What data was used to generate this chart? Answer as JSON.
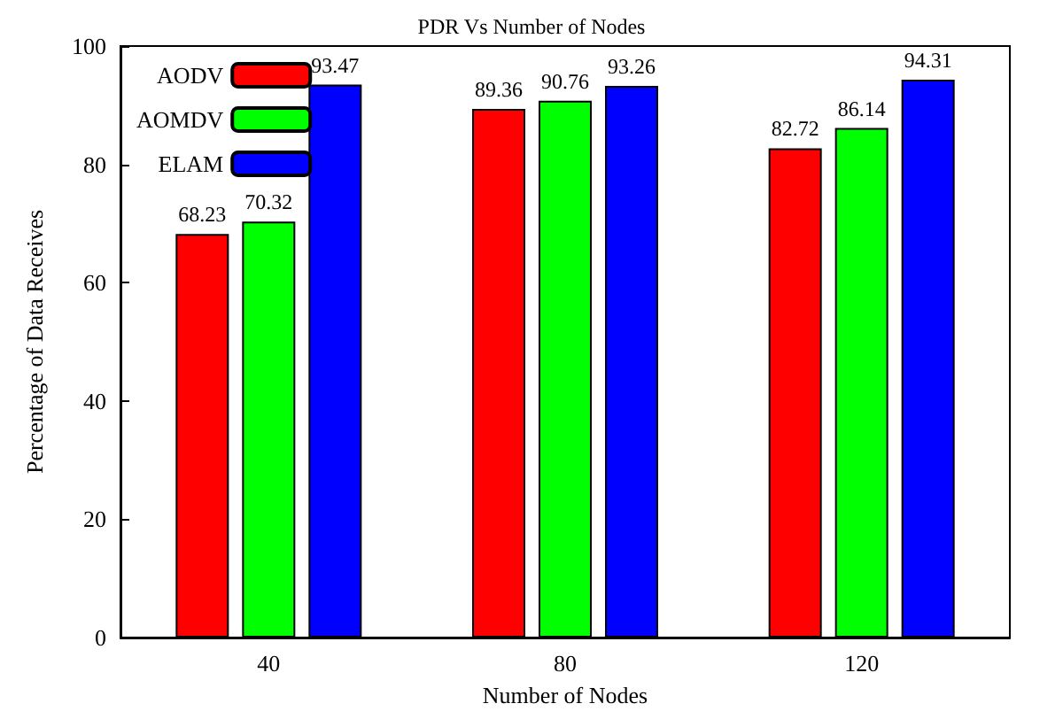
{
  "chart_data": {
    "type": "bar",
    "title": "PDR Vs Number of Nodes",
    "xlabel": "Number of Nodes",
    "ylabel": "Percentage of Data Receives",
    "categories": [
      "40",
      "80",
      "120"
    ],
    "series": [
      {
        "name": "AODV",
        "color": "#ff0000",
        "values": [
          68.23,
          89.36,
          82.72
        ]
      },
      {
        "name": "AOMDV",
        "color": "#00ff00",
        "values": [
          70.32,
          90.76,
          86.14
        ]
      },
      {
        "name": "ELAM",
        "color": "#0000ff",
        "values": [
          93.47,
          93.26,
          94.31
        ]
      }
    ],
    "ylim": [
      0,
      100
    ],
    "yticks": [
      0,
      20,
      40,
      60,
      80,
      100
    ],
    "legend": "top left",
    "data_labels": true
  }
}
